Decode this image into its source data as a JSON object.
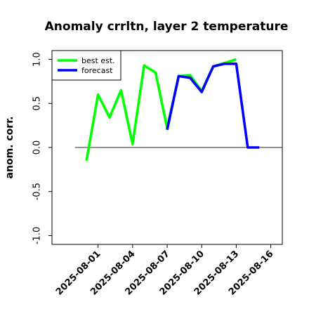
{
  "chart_data": {
    "type": "line",
    "title": "Anomaly crrltn, layer 2 temperature",
    "xlabel": "",
    "ylabel": "anom. corr.",
    "ylim": [
      -1.1,
      1.1
    ],
    "xlim": [
      "2025-07-28",
      "2025-08-17"
    ],
    "y_ticks": [
      -1.0,
      -0.5,
      0.0,
      0.5,
      1.0
    ],
    "y_tick_labels": [
      "-1.0",
      "-0.5",
      "0.0",
      "0.5",
      "1.0"
    ],
    "x_ticks": [
      "2025-08-01",
      "2025-08-04",
      "2025-08-07",
      "2025-08-10",
      "2025-08-13",
      "2025-08-16"
    ],
    "x_tick_labels": [
      "2025-08-01",
      "2025-08-04",
      "2025-08-07",
      "2025-08-10",
      "2025-08-13",
      "2025-08-16"
    ],
    "highlighted_tick": "2025-08-07",
    "highlight_color": "#228B22",
    "zero_line": true,
    "grid": false,
    "legend_position": "top-left",
    "series": [
      {
        "name": "best est.",
        "color": "#00ff00",
        "points": [
          {
            "x": "2025-07-31",
            "y": -0.15
          },
          {
            "x": "2025-08-01",
            "y": 0.6
          },
          {
            "x": "2025-08-02",
            "y": 0.34
          },
          {
            "x": "2025-08-03",
            "y": 0.65
          },
          {
            "x": "2025-08-04",
            "y": 0.04
          },
          {
            "x": "2025-08-05",
            "y": 0.93
          },
          {
            "x": "2025-08-06",
            "y": 0.85
          },
          {
            "x": "2025-08-07",
            "y": 0.22
          },
          {
            "x": "2025-08-08",
            "y": 0.81
          },
          {
            "x": "2025-08-09",
            "y": 0.82
          },
          {
            "x": "2025-08-10",
            "y": 0.64
          },
          {
            "x": "2025-08-11",
            "y": 0.92
          },
          {
            "x": "2025-08-12",
            "y": 0.96
          },
          {
            "x": "2025-08-13",
            "y": 1.0
          }
        ]
      },
      {
        "name": "forecast",
        "color": "#0000ff",
        "points": [
          {
            "x": "2025-08-07",
            "y": 0.2
          },
          {
            "x": "2025-08-08",
            "y": 0.81
          },
          {
            "x": "2025-08-09",
            "y": 0.79
          },
          {
            "x": "2025-08-10",
            "y": 0.63
          },
          {
            "x": "2025-08-11",
            "y": 0.92
          },
          {
            "x": "2025-08-12",
            "y": 0.95
          },
          {
            "x": "2025-08-13",
            "y": 0.95
          },
          {
            "x": "2025-08-14",
            "y": 0.0
          },
          {
            "x": "2025-08-15",
            "y": 0.0
          }
        ]
      }
    ]
  }
}
